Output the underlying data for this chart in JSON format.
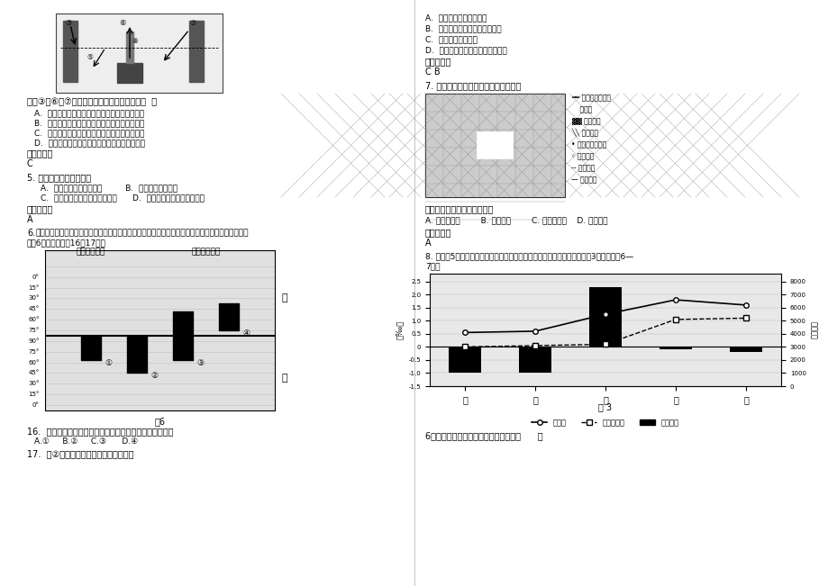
{
  "page_bg": "#ffffff",
  "left_col": {
    "radiation_title": "图中③、⑥、⑦三个箭头所表示的辐射依次是（  ）",
    "radiation_options": [
      "A.  大气吸收的地面辐射、大气逆辐射、太阳辐射",
      "B.  太阳辐射、大气吸收的地面辐射、大气逆辐射",
      "C.  大气逆辐射、大气吸收的地面辐射、太阳辐射",
      "D.  太阳辐射、大气逆辐射、大气吸收的地面辐射"
    ],
    "radiation_answer": "C",
    "q5_question": "5. 农业区位选择的实质是",
    "q5_opt1": "A.  对农业土地的合理利用         B.  农作物品种的选择",
    "q5_opt2": "C.  农作物生产所选择的地理位置      D.  农业与地理环境的相互联系",
    "q5_answer": "A",
    "q6_line1": "6.",
    "q6_line2": "我国某校地理兴趣小组的同学，把世界上四地年内正午太阳高度及正午太阳方向的变化情况绘成简图",
    "q6_line3": "（图6），读图回答16－17题。",
    "fig6_caption": "图6",
    "fig6_north": "北",
    "fig6_south": "南",
    "fig6_left_header": "正午太阳高度",
    "fig6_right_header": "正午太阳方向",
    "fig6_yticks": [
      "0°",
      "15°",
      "30°",
      "45°",
      "60°",
      "75°",
      "90°",
      "75°",
      "60°",
      "45°",
      "30°",
      "15°",
      "0°"
    ],
    "q16_question": "16.  可能反映学校所在地正午太阳高度角年变化及方向的是",
    "q16_options": "A.①     B.②     C.③      D.④",
    "q17_question": "17.  当②地正午太阳高度角达到最大值时"
  },
  "right_col": {
    "prev_opts": [
      "A.  该学校所在地天气炎热",
      "B.  太阳在地球上的直射点将北移",
      "C.  地球公转速度较慢",
      "D.  其他三地正午太阳所在方向不同"
    ],
    "prev_answer": "C B",
    "q7_intro": "7. 读伦敦的城市规划和布局示意图回答",
    "q7_question": "伦敦的城市地域结构模式属于",
    "q7_options": "A. 同心圆模式        B. 扇形模式        C. 多核心模式    D. 块状模式",
    "q7_answer": "A",
    "q8_line1": "8. 读我国5省区某年人口出生率、人口自然增长率和人口总数的统计图（图3），回答第6—",
    "q8_line2": "7题。",
    "q8_provinces": [
      "沪",
      "京",
      "苏",
      "藏",
      "宁"
    ],
    "q8_birth_rate": [
      0.55,
      0.6,
      1.25,
      1.8,
      1.6
    ],
    "q8_natural_growth": [
      0.0,
      0.05,
      0.1,
      1.05,
      1.1
    ],
    "q8_pop_bars": [
      -1.0,
      -1.0,
      2.3,
      -0.1,
      -0.2
    ],
    "q8_left_ylabel": "（‰）",
    "q8_right_ylabel": "（万人）",
    "q8_caption": "图 3",
    "q8_legend": [
      "出生率",
      "自然增长率",
      "人口总数"
    ],
    "q6_bottom": "6．图中各省区中在该年的人口情况：（      ）"
  }
}
